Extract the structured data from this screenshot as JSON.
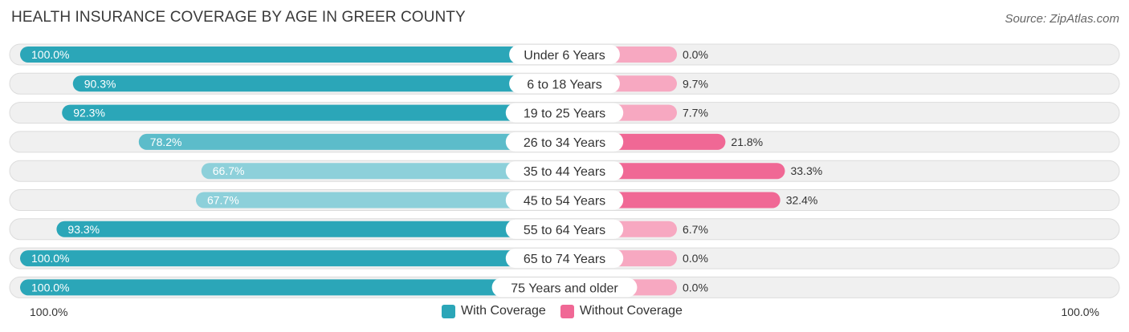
{
  "chart_data": {
    "type": "bar",
    "title": "HEALTH INSURANCE COVERAGE BY AGE IN GREER COUNTY",
    "source": "Source: ZipAtlas.com",
    "categories": [
      "Under 6 Years",
      "6 to 18 Years",
      "19 to 25 Years",
      "26 to 34 Years",
      "35 to 44 Years",
      "45 to 54 Years",
      "55 to 64 Years",
      "65 to 74 Years",
      "75 Years and older"
    ],
    "series": [
      {
        "name": "With Coverage",
        "values": [
          100.0,
          90.3,
          92.3,
          78.2,
          66.7,
          67.7,
          93.3,
          100.0,
          100.0
        ]
      },
      {
        "name": "Without Coverage",
        "values": [
          0.0,
          9.7,
          7.7,
          21.8,
          33.3,
          32.4,
          6.7,
          0.0,
          0.0
        ]
      }
    ],
    "value_labels": {
      "with": [
        "100.0%",
        "90.3%",
        "92.3%",
        "78.2%",
        "66.7%",
        "67.7%",
        "93.3%",
        "100.0%",
        "100.0%"
      ],
      "without": [
        "0.0%",
        "9.7%",
        "7.7%",
        "21.8%",
        "33.3%",
        "32.4%",
        "6.7%",
        "0.0%",
        "0.0%"
      ]
    },
    "axis": {
      "left_label": "100.0%",
      "right_label": "100.0%",
      "xlim": [
        0,
        100
      ]
    },
    "legend": {
      "with": "With Coverage",
      "without": "Without Coverage"
    },
    "colors": {
      "with_dark": "#2ba6b8",
      "with_light": "#8dd0da",
      "without_dark": "#f06895",
      "without_light": "#f7a8c1"
    }
  }
}
